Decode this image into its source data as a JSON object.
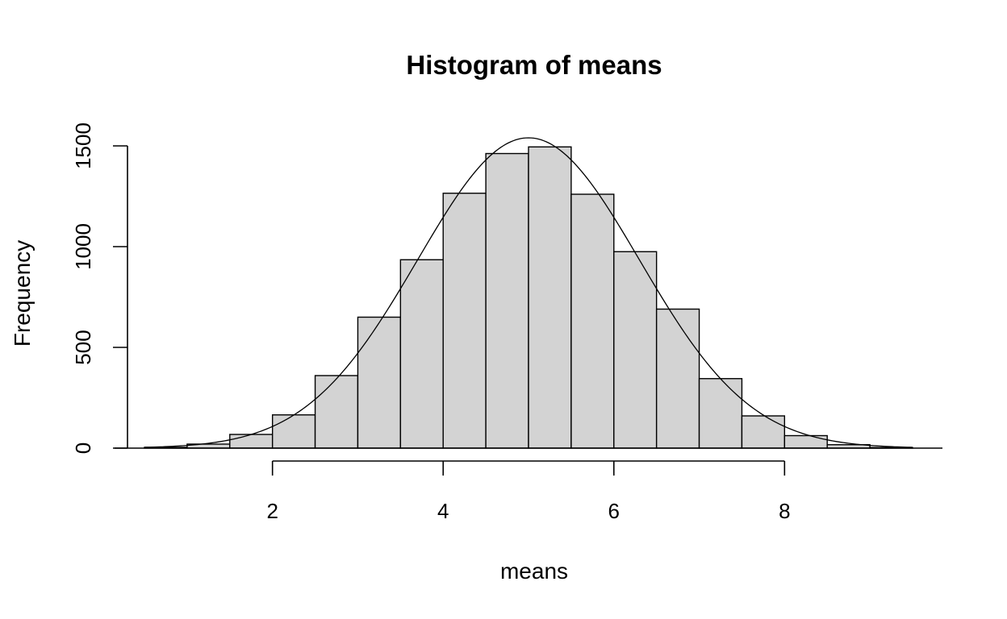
{
  "chart_data": {
    "type": "bar",
    "title": "Histogram of means",
    "xlabel": "means",
    "ylabel": "Frequency",
    "bins": [
      {
        "x0": 0.5,
        "x1": 1.0,
        "count": 4
      },
      {
        "x0": 1.0,
        "x1": 1.5,
        "count": 20
      },
      {
        "x0": 1.5,
        "x1": 2.0,
        "count": 68
      },
      {
        "x0": 2.0,
        "x1": 2.5,
        "count": 165
      },
      {
        "x0": 2.5,
        "x1": 3.0,
        "count": 360
      },
      {
        "x0": 3.0,
        "x1": 3.5,
        "count": 650
      },
      {
        "x0": 3.5,
        "x1": 4.0,
        "count": 935
      },
      {
        "x0": 4.0,
        "x1": 4.5,
        "count": 1265
      },
      {
        "x0": 4.5,
        "x1": 5.0,
        "count": 1462
      },
      {
        "x0": 5.0,
        "x1": 5.5,
        "count": 1495
      },
      {
        "x0": 5.5,
        "x1": 6.0,
        "count": 1260
      },
      {
        "x0": 6.0,
        "x1": 6.5,
        "count": 975
      },
      {
        "x0": 6.5,
        "x1": 7.0,
        "count": 690
      },
      {
        "x0": 7.0,
        "x1": 7.5,
        "count": 345
      },
      {
        "x0": 7.5,
        "x1": 8.0,
        "count": 160
      },
      {
        "x0": 8.0,
        "x1": 8.5,
        "count": 62
      },
      {
        "x0": 8.5,
        "x1": 9.0,
        "count": 17
      },
      {
        "x0": 9.0,
        "x1": 9.5,
        "count": 3
      }
    ],
    "density_curve": {
      "mean": 5.0,
      "sd": 1.3,
      "peak": 1540
    },
    "xlim": [
      0.15,
      9.85
    ],
    "ylim": [
      0,
      1600
    ],
    "x_ticks": [
      2,
      4,
      6,
      8
    ],
    "y_ticks": [
      0,
      500,
      1000,
      1500
    ],
    "x_tick_labels": [
      "2",
      "4",
      "6",
      "8"
    ],
    "y_tick_labels": [
      "0",
      "500",
      "1000",
      "1500"
    ],
    "grid": false,
    "colors": {
      "bar_fill": "#d3d3d3",
      "bar_stroke": "#000000",
      "curve": "#000000"
    }
  }
}
